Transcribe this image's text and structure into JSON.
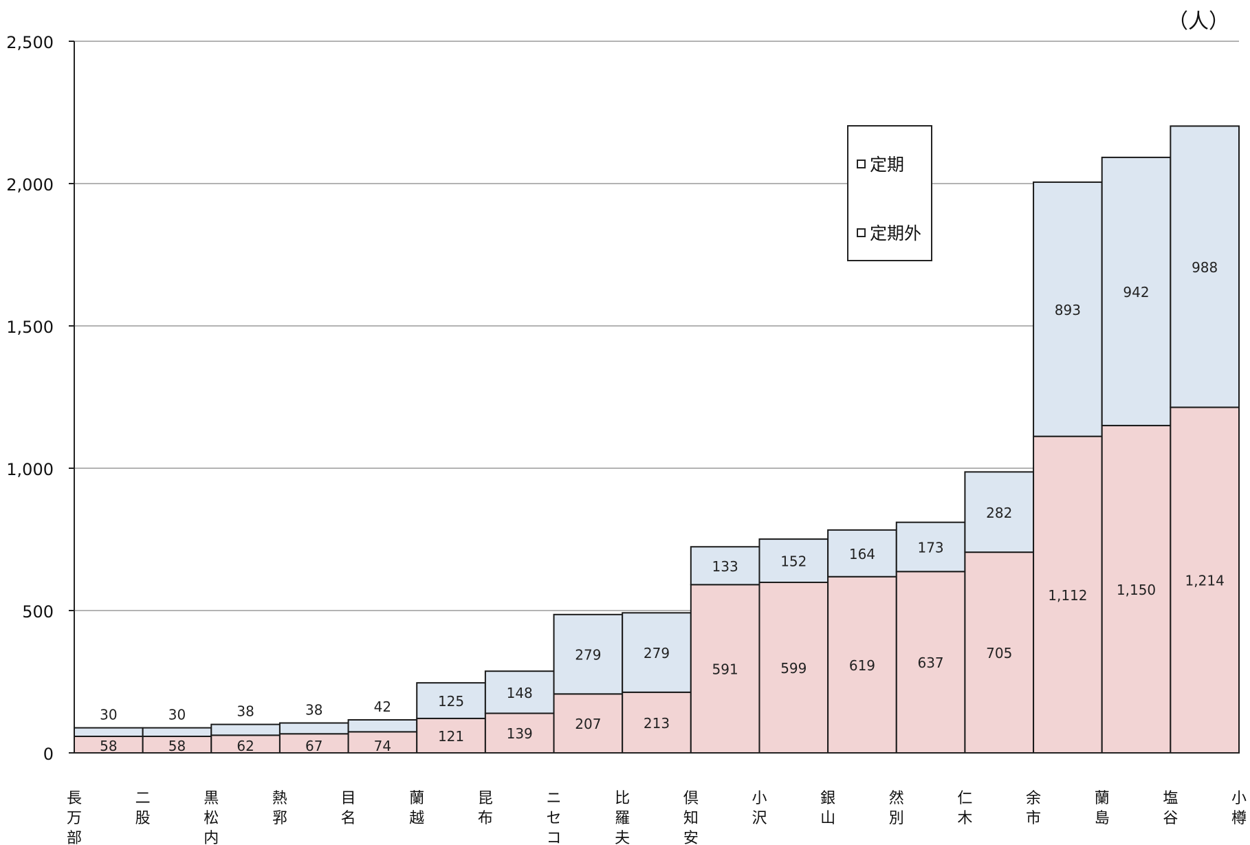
{
  "chart_data": {
    "type": "bar",
    "stacked": true,
    "unit_label": "（人）",
    "categories": [
      "長万部",
      "二股",
      "黒松内",
      "熱郛",
      "目名",
      "蘭越",
      "昆布",
      "ニセコ",
      "比羅夫",
      "倶知安",
      "小沢",
      "銀山",
      "然別",
      "仁木",
      "余市",
      "蘭島",
      "塩谷",
      "小樽"
    ],
    "series": [
      {
        "name": "定期外",
        "color": "#f2d4d4",
        "values": [
          58,
          58,
          62,
          67,
          74,
          121,
          139,
          207,
          213,
          591,
          599,
          619,
          637,
          705,
          1112,
          1150,
          1214,
          1214
        ]
      },
      {
        "name": "定期",
        "color": "#dce6f1",
        "values": [
          30,
          30,
          38,
          38,
          42,
          125,
          148,
          279,
          279,
          133,
          152,
          164,
          173,
          282,
          893,
          942,
          988,
          988
        ]
      }
    ],
    "value_labels": {
      "定期外": [
        "58",
        "58",
        "62",
        "67",
        "74",
        "121",
        "139",
        "207",
        "213",
        "591",
        "599",
        "619",
        "637",
        "705",
        "1,112",
        "1,150",
        "1,214",
        ""
      ],
      "定期": [
        "30",
        "30",
        "38",
        "38",
        "42",
        "125",
        "148",
        "279",
        "279",
        "133",
        "152",
        "164",
        "173",
        "282",
        "893",
        "942",
        "988",
        ""
      ]
    },
    "y_ticks": [
      "0",
      "500",
      "1,000",
      "1,500",
      "2,000",
      "2,500"
    ],
    "ylim": [
      0,
      2500
    ],
    "grid": true,
    "legend": {
      "placement": "top-right",
      "items": [
        "定期",
        "定期外"
      ]
    }
  }
}
